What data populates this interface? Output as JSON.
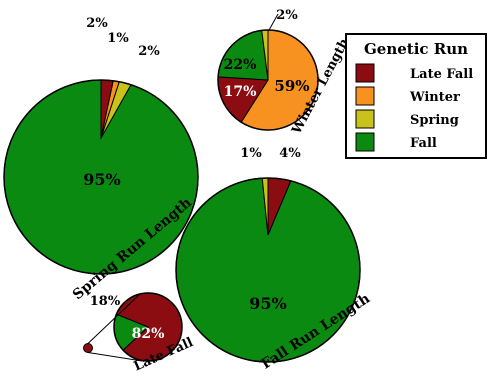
{
  "colors": {
    "late_fall": "#8b0d12",
    "winter": "#f7911f",
    "spring": "#c8c21a",
    "fall": "#0b8a12"
  },
  "chart_data": [
    {
      "type": "pie",
      "title": "Spring Run Length",
      "slices": [
        {
          "category": "Fall",
          "value": 95,
          "label": "95%"
        },
        {
          "category": "Spring",
          "value": 2,
          "label": "2%"
        },
        {
          "category": "Winter",
          "value": 1,
          "label": "1%"
        },
        {
          "category": "Late Fall",
          "value": 2,
          "label": "2%"
        }
      ]
    },
    {
      "type": "pie",
      "title": "Winter Length",
      "slices": [
        {
          "category": "Winter",
          "value": 59,
          "label": "59%"
        },
        {
          "category": "Late Fall",
          "value": 17,
          "label": "17%"
        },
        {
          "category": "Fall",
          "value": 22,
          "label": "22%"
        },
        {
          "category": "Spring",
          "value": 2,
          "label": "2%"
        }
      ]
    },
    {
      "type": "pie",
      "title": "Fall Run Length",
      "slices": [
        {
          "category": "Late Fall",
          "value": 4,
          "label": "4%"
        },
        {
          "category": "Fall",
          "value": 95,
          "label": "95%"
        },
        {
          "category": "Spring",
          "value": 1,
          "label": "1%"
        }
      ]
    },
    {
      "type": "pie",
      "title": "Late Fall",
      "slices": [
        {
          "category": "Late Fall",
          "value": 82,
          "label": "82%"
        },
        {
          "category": "Fall",
          "value": 18,
          "label": "18%"
        }
      ]
    }
  ],
  "legend": {
    "title": "Genetic Run",
    "items": [
      {
        "label": "Late Fall",
        "key": "late_fall"
      },
      {
        "label": "Winter",
        "key": "winter"
      },
      {
        "label": "Spring",
        "key": "spring"
      },
      {
        "label": "Fall",
        "key": "fall"
      }
    ]
  }
}
